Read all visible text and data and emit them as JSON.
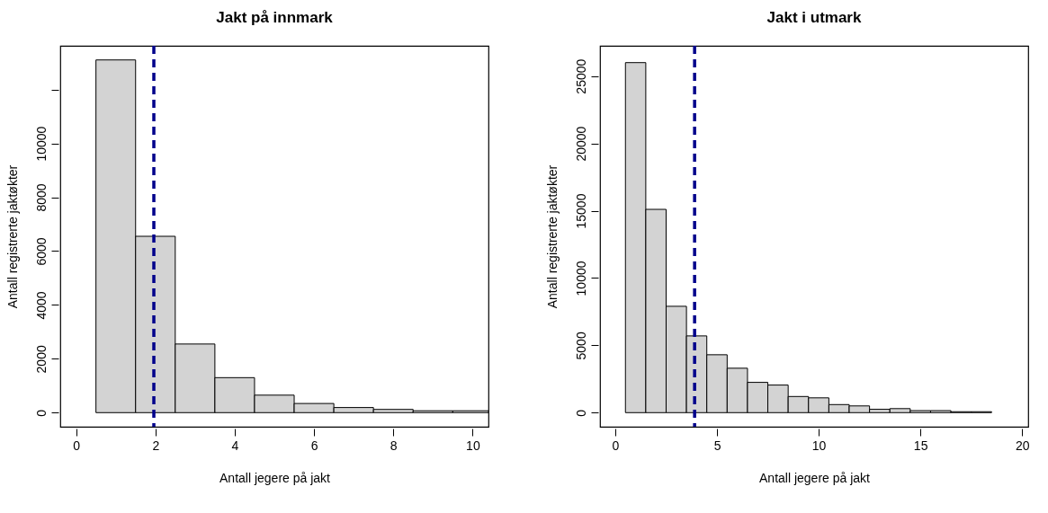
{
  "chart_data": [
    {
      "type": "histogram",
      "title": "Jakt på innmark",
      "xlabel": "Antall jegere på jakt",
      "ylabel": "Antall registrerte jaktøkter",
      "bins": [
        0.5,
        1.5,
        2.5,
        3.5,
        4.5,
        5.5,
        6.5,
        7.5,
        8.5,
        9.5,
        10.4
      ],
      "values": [
        13100,
        6550,
        2550,
        1300,
        650,
        340,
        190,
        120,
        70,
        70
      ],
      "color": "#d3d3d3",
      "xlim": [
        -0.4,
        10.4
      ],
      "xticks": [
        0,
        2,
        4,
        6,
        8,
        10
      ],
      "ylim": [
        -524,
        13624
      ],
      "yticks": [
        0,
        2000,
        4000,
        6000,
        8000,
        10000,
        {
          "value": 12000,
          "label": null
        }
      ],
      "ref_lines": [
        {
          "axis": "x",
          "value": 1.96,
          "color": "#00008b",
          "line_style": "dashed"
        }
      ]
    },
    {
      "type": "histogram",
      "title": "Jakt i utmark",
      "xlabel": "Antall jegere på jakt",
      "ylabel": "Antall registrerte jaktøkter",
      "bins": [
        0.5,
        1.5,
        2.5,
        3.5,
        4.5,
        5.5,
        6.5,
        7.5,
        8.5,
        9.5,
        10.5,
        11.5,
        12.5,
        13.5,
        14.5,
        15.5,
        16.5,
        17.5,
        18.5
      ],
      "values": [
        26000,
        15100,
        7900,
        5700,
        4300,
        3300,
        2250,
        2050,
        1200,
        1100,
        600,
        500,
        250,
        300,
        150,
        150,
        70,
        70
      ],
      "color": "#d3d3d3",
      "xlim": [
        -0.75,
        20.3
      ],
      "xticks": [
        0,
        5,
        10,
        15,
        20
      ],
      "ylim": [
        -1048,
        27248
      ],
      "yticks": [
        0,
        5000,
        10000,
        15000,
        20000,
        25000
      ],
      "ref_lines": [
        {
          "axis": "x",
          "value": 3.9,
          "color": "#00008b",
          "line_style": "dashed"
        }
      ]
    }
  ]
}
